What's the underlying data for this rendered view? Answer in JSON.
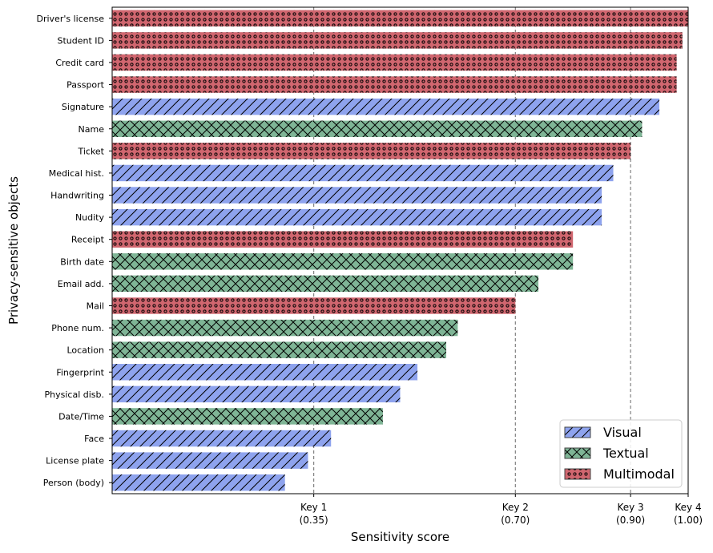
{
  "chart_data": {
    "type": "bar",
    "orientation": "horizontal",
    "xlabel": "Sensitivity score",
    "ylabel": "Privacy-sensitive objects",
    "xlim": [
      0,
      1.0
    ],
    "grid": "vertical dashed lines at key thresholds",
    "legend_position": "bottom-right",
    "keys": [
      {
        "label": "Key 1",
        "value_label": "(0.35)",
        "value": 0.35
      },
      {
        "label": "Key 2",
        "value_label": "(0.70)",
        "value": 0.7
      },
      {
        "label": "Key 3",
        "value_label": "(0.90)",
        "value": 0.9
      },
      {
        "label": "Key 4",
        "value_label": "(1.00)",
        "value": 1.0
      }
    ],
    "categories_style": {
      "Visual": {
        "color": "#8ea3ee",
        "hatch": "diagonal"
      },
      "Textual": {
        "color": "#7fb596",
        "hatch": "cross"
      },
      "Multimodal": {
        "color": "#d0666f",
        "hatch": "dots"
      }
    },
    "legend": [
      "Visual",
      "Textual",
      "Multimodal"
    ],
    "bars": [
      {
        "label": "Driver's license",
        "value": 1.0,
        "category": "Multimodal"
      },
      {
        "label": "Student ID",
        "value": 0.99,
        "category": "Multimodal"
      },
      {
        "label": "Credit card",
        "value": 0.98,
        "category": "Multimodal"
      },
      {
        "label": "Passport",
        "value": 0.98,
        "category": "Multimodal"
      },
      {
        "label": "Signature",
        "value": 0.95,
        "category": "Visual"
      },
      {
        "label": "Name",
        "value": 0.92,
        "category": "Textual"
      },
      {
        "label": "Ticket",
        "value": 0.9,
        "category": "Multimodal"
      },
      {
        "label": "Medical hist.",
        "value": 0.87,
        "category": "Visual"
      },
      {
        "label": "Handwriting",
        "value": 0.85,
        "category": "Visual"
      },
      {
        "label": "Nudity",
        "value": 0.85,
        "category": "Visual"
      },
      {
        "label": "Receipt",
        "value": 0.8,
        "category": "Multimodal"
      },
      {
        "label": "Birth date",
        "value": 0.8,
        "category": "Textual"
      },
      {
        "label": "Email add.",
        "value": 0.74,
        "category": "Textual"
      },
      {
        "label": "Mail",
        "value": 0.7,
        "category": "Multimodal"
      },
      {
        "label": "Phone num.",
        "value": 0.6,
        "category": "Textual"
      },
      {
        "label": "Location",
        "value": 0.58,
        "category": "Textual"
      },
      {
        "label": "Fingerprint",
        "value": 0.53,
        "category": "Visual"
      },
      {
        "label": "Physical disb.",
        "value": 0.5,
        "category": "Visual"
      },
      {
        "label": "Date/Time",
        "value": 0.47,
        "category": "Textual"
      },
      {
        "label": "Face",
        "value": 0.38,
        "category": "Visual"
      },
      {
        "label": "License plate",
        "value": 0.34,
        "category": "Visual"
      },
      {
        "label": "Person (body)",
        "value": 0.3,
        "category": "Visual"
      }
    ]
  }
}
